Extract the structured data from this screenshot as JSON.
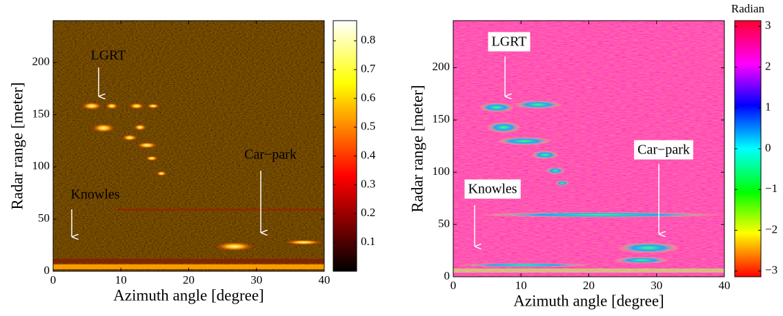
{
  "chart_data": [
    {
      "type": "heatmap",
      "xlabel": "Azimuth angle [degree]",
      "ylabel": "Radar range [meter]",
      "xlim": [
        0,
        40
      ],
      "ylim": [
        0,
        240
      ],
      "xticks": [
        0,
        10,
        20,
        30,
        40
      ],
      "yticks": [
        0,
        50,
        100,
        150,
        200
      ],
      "clim": [
        0,
        0.87
      ],
      "cticks": [
        0.1,
        0.2,
        0.3,
        0.4,
        0.5,
        0.6,
        0.7,
        0.8
      ],
      "colormap": "hot",
      "annotations": [
        "LGRT",
        "Knowles",
        "Car−park"
      ]
    },
    {
      "type": "heatmap",
      "xlabel": "Azimuth angle [degree]",
      "ylabel": "Radar range [meter]",
      "xlim": [
        0,
        40
      ],
      "ylim": [
        0,
        245
      ],
      "xticks": [
        0,
        10,
        20,
        30,
        40
      ],
      "yticks": [
        0,
        50,
        100,
        150,
        200
      ],
      "clim": [
        -3.14,
        3.14
      ],
      "colorbar_title": "Radian",
      "cticks": [
        {
          "value": -3,
          "label": "−3"
        },
        {
          "value": -2,
          "label": "−2"
        },
        {
          "value": -1,
          "label": "−1"
        },
        0,
        1,
        2,
        3
      ],
      "colormap": "hsv",
      "annotations": [
        "LGRT",
        "Knowles",
        "Car−park"
      ]
    }
  ]
}
